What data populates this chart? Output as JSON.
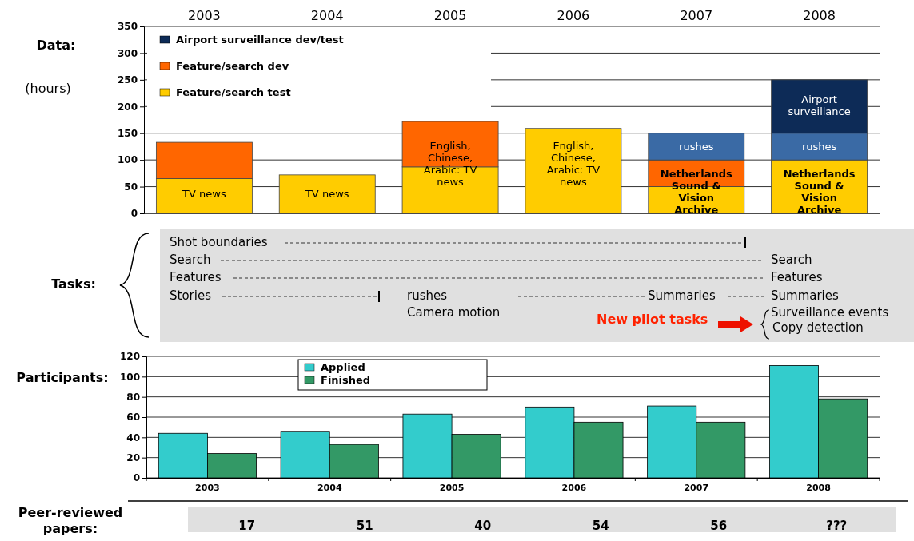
{
  "chart_data": [
    {
      "type": "bar",
      "title": "Data:",
      "ylabel": "(hours)",
      "categories": [
        "2003",
        "2004",
        "2005",
        "2006",
        "2007",
        "2008"
      ],
      "stacked": true,
      "ylim": [
        0,
        350
      ],
      "yticks": [
        0,
        50,
        100,
        150,
        200,
        250,
        300,
        350
      ],
      "grid": "y",
      "legend": "top left",
      "series": [
        {
          "name": "Feature/search test",
          "color": "#ffcc00",
          "values": [
            65,
            72,
            87,
            159,
            50,
            100
          ]
        },
        {
          "name": "Feature/search dev",
          "color": "#ff6600",
          "values": [
            68,
            null,
            85,
            null,
            50,
            null
          ]
        },
        {
          "color": "#3a6aa5",
          "values": [
            null,
            null,
            null,
            null,
            50,
            50
          ]
        },
        {
          "name": "Airport surveillance dev/test",
          "color": "#0d2b57",
          "values": [
            null,
            null,
            null,
            null,
            null,
            100
          ]
        }
      ],
      "annotations": [
        "TV news",
        "TV news",
        "English, Chinese, Arabic: TV news",
        "English, Chinese, Arabic: TV news",
        "rushes",
        "Netherlands Sound & Vision Archive",
        "Airport surveillance",
        "rushes",
        "Netherlands Sound & Vision Archive"
      ]
    },
    {
      "type": "other",
      "title": "Tasks:",
      "annotations": [
        "Shot boundaries",
        "Search",
        "Features",
        "Stories",
        "rushes",
        "Camera motion",
        "Summaries",
        "Search",
        "Features",
        "Summaries",
        "Surveillance events",
        "Copy detection",
        "New pilot tasks"
      ]
    },
    {
      "type": "bar",
      "title": "Participants:",
      "categories": [
        "2003",
        "2004",
        "2005",
        "2006",
        "2007",
        "2008"
      ],
      "ylim": [
        0,
        120
      ],
      "yticks": [
        0,
        20,
        40,
        60,
        80,
        100,
        120
      ],
      "grid": "y",
      "legend": "top left",
      "series": [
        {
          "name": "Applied",
          "color": "#33cccc",
          "values": [
            44,
            46,
            63,
            70,
            71,
            111
          ]
        },
        {
          "name": "Finished",
          "color": "#339966",
          "values": [
            24,
            33,
            43,
            55,
            55,
            78
          ]
        }
      ]
    },
    {
      "type": "other",
      "title": "Peer-reviewed papers:",
      "annotations": [
        "17",
        "51",
        "40",
        "54",
        "56",
        "???"
      ]
    }
  ]
}
